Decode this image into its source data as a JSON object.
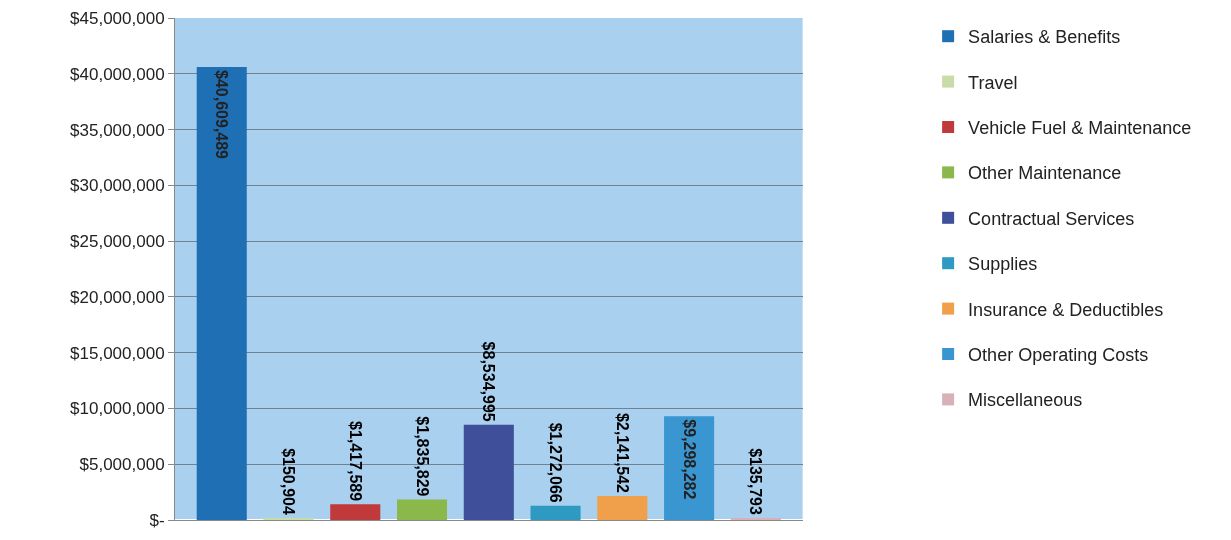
{
  "chart_data": {
    "type": "bar",
    "categories": [
      null,
      null,
      null,
      null,
      null,
      null,
      null,
      null,
      null
    ],
    "series": [
      {
        "name": "Salaries & Benefits",
        "color": "#1f6fb5",
        "values": [
          40609489,
          null,
          null,
          null,
          null,
          null,
          null,
          null,
          null
        ],
        "value_labels": [
          "$40,609,489",
          null,
          null,
          null,
          null,
          null,
          null,
          null,
          null
        ]
      },
      {
        "name": "Travel",
        "color": "#c8dca8",
        "values": [
          null,
          150904,
          null,
          null,
          null,
          null,
          null,
          null,
          null
        ],
        "value_labels": [
          null,
          "$150,904",
          null,
          null,
          null,
          null,
          null,
          null,
          null
        ]
      },
      {
        "name": "Vehicle Fuel & Maintenance",
        "color": "#c0393b",
        "values": [
          null,
          null,
          1417589,
          null,
          null,
          null,
          null,
          null,
          null
        ],
        "value_labels": [
          null,
          null,
          "$1,417,589",
          null,
          null,
          null,
          null,
          null,
          null
        ]
      },
      {
        "name": "Other Maintenance",
        "color": "#8bb84a",
        "values": [
          null,
          null,
          null,
          1835829,
          null,
          null,
          null,
          null,
          null
        ],
        "value_labels": [
          null,
          null,
          null,
          "$1,835,829",
          null,
          null,
          null,
          null,
          null
        ]
      },
      {
        "name": "Contractual Services",
        "color": "#3f4f9a",
        "values": [
          null,
          null,
          null,
          null,
          8534995,
          null,
          null,
          null,
          null
        ],
        "value_labels": [
          null,
          null,
          null,
          null,
          "$8,534,995",
          null,
          null,
          null,
          null
        ]
      },
      {
        "name": "Supplies",
        "color": "#2e9ac1",
        "values": [
          null,
          null,
          null,
          null,
          null,
          1272066,
          null,
          null,
          null
        ],
        "value_labels": [
          null,
          null,
          null,
          null,
          null,
          "$1,272,066",
          null,
          null,
          null
        ]
      },
      {
        "name": "Insurance & Deductibles",
        "color": "#f0a04b",
        "values": [
          null,
          null,
          null,
          null,
          null,
          null,
          2141542,
          null,
          null
        ],
        "value_labels": [
          null,
          null,
          null,
          null,
          null,
          null,
          "$2,141,542",
          null,
          null
        ]
      },
      {
        "name": "Other Operating Costs",
        "color": "#3a96d0",
        "values": [
          null,
          null,
          null,
          null,
          null,
          null,
          null,
          9298282,
          null
        ],
        "value_labels": [
          null,
          null,
          null,
          null,
          null,
          null,
          null,
          "$9,298,282",
          null
        ]
      },
      {
        "name": "Miscellaneous",
        "color": "#d8b0b8",
        "values": [
          null,
          null,
          null,
          null,
          null,
          null,
          null,
          null,
          135793
        ],
        "value_labels": [
          null,
          null,
          null,
          null,
          null,
          null,
          null,
          null,
          "$135,793"
        ]
      }
    ],
    "ylim": [
      0,
      45000000
    ],
    "yticks": [
      {
        "value": 0,
        "label": "$-"
      },
      {
        "value": 5000000,
        "label": "$5,000,000"
      },
      {
        "value": 10000000,
        "label": "$10,000,000"
      },
      {
        "value": 15000000,
        "label": "$15,000,000"
      },
      {
        "value": 20000000,
        "label": "$20,000,000"
      },
      {
        "value": 25000000,
        "label": "$25,000,000"
      },
      {
        "value": 30000000,
        "label": "$30,000,000"
      },
      {
        "value": 35000000,
        "label": "$35,000,000"
      },
      {
        "value": 40000000,
        "label": "$40,000,000"
      },
      {
        "value": 45000000,
        "label": "$45,000,000"
      }
    ],
    "grid": "y",
    "legend": "right",
    "tick_labels": "y"
  }
}
